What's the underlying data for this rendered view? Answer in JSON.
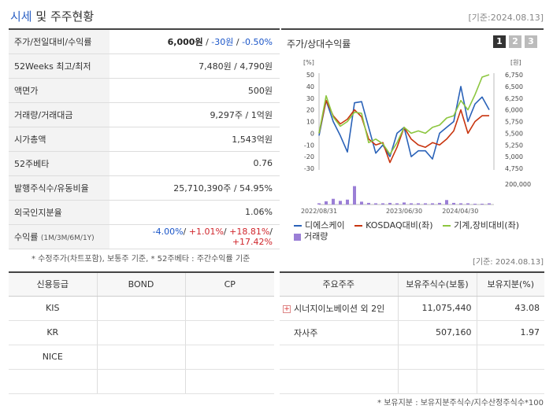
{
  "header": {
    "title_accent": "시세",
    "title_rest": " 및 주주현황",
    "base_date": "[기준:2024.08.13]"
  },
  "info": {
    "price_label": "주가/전일대비/수익률",
    "price": "6,000원",
    "change": "-30원",
    "change_pct": "-0.50%",
    "week52_label": "52Weeks 최고/최저",
    "week52_value": "7,480원 / 4,790원",
    "par_label": "액면가",
    "par_value": "500원",
    "volume_label": "거래량/거래대금",
    "volume_value": "9,297주 / 1억원",
    "mcap_label": "시가총액",
    "mcap_value": "1,543억원",
    "beta_label": "52주베타",
    "beta_value": "0.76",
    "shares_label": "발행주식수/유동비율",
    "shares_value": "25,710,390주 / 54.95%",
    "foreign_label": "외국인지분율",
    "foreign_value": "1.06%",
    "return_label": "수익률",
    "return_periods": "(1M/3M/6M/1Y)",
    "return_1m": "-4.00%",
    "return_3m": "+1.01%",
    "return_6m": "+18.81%",
    "return_1y": "+17.42%"
  },
  "chart_panel": {
    "title": "주가/상대수익률",
    "tabs": [
      "1",
      "2",
      "3"
    ]
  },
  "chart_data": {
    "type": "line",
    "left_unit": "[%]",
    "right_unit": "[원]",
    "left_ticks": [
      "50",
      "40",
      "30",
      "20",
      "10",
      "0",
      "-10",
      "-20",
      "-30"
    ],
    "right_ticks": [
      "6,750",
      "6,500",
      "6,250",
      "6,000",
      "5,750",
      "5,500",
      "5,250",
      "5,000",
      "4,750"
    ],
    "volume_tick": "200,000",
    "x_ticks": [
      "2022/08/31",
      "2023/06/30",
      "2024/04/30"
    ],
    "ylim": [
      -30,
      50
    ],
    "x": [
      0,
      1,
      2,
      3,
      4,
      5,
      6,
      7,
      8,
      9,
      10,
      11,
      12,
      13,
      14,
      15,
      16,
      17,
      18,
      19,
      20,
      21,
      22,
      23,
      24
    ],
    "series": [
      {
        "name": "디에스케이",
        "color": "#2a62b8",
        "values": [
          -2,
          28,
          10,
          -2,
          -16,
          26,
          27,
          5,
          -17,
          -10,
          -20,
          0,
          5,
          -20,
          -15,
          -15,
          -22,
          0,
          5,
          10,
          40,
          10,
          25,
          31,
          20
        ]
      },
      {
        "name": "KOSDAQ대비(좌)",
        "color": "#c8350f",
        "values": [
          0,
          28,
          15,
          8,
          12,
          20,
          14,
          -5,
          -10,
          -8,
          -25,
          -12,
          5,
          -5,
          -10,
          -12,
          -8,
          -10,
          -5,
          2,
          20,
          0,
          10,
          15,
          15
        ]
      },
      {
        "name": "기계,장비대비(좌)",
        "color": "#8cc63f",
        "values": [
          0,
          32,
          14,
          6,
          10,
          18,
          17,
          -8,
          -5,
          -9,
          -18,
          -8,
          5,
          0,
          2,
          0,
          5,
          7,
          13,
          15,
          28,
          20,
          33,
          48,
          50
        ]
      }
    ],
    "volume": {
      "name": "거래량",
      "color": "#9b7fd6",
      "values": [
        3,
        8,
        14,
        9,
        12,
        45,
        7,
        4,
        3,
        3,
        4,
        3,
        5,
        3,
        3,
        3,
        3,
        4,
        11,
        4,
        3,
        3,
        2,
        2,
        3
      ]
    }
  },
  "legend": {
    "s1": "디에스케이",
    "s2": "KOSDAQ대비(좌)",
    "s3": "기계,장비대비(좌)",
    "s4": "거래량"
  },
  "notes": {
    "note1": "* 수정주가(차트포함), 보통주 기준, * 52주베타 : 주간수익률 기준",
    "base_date2": "[기준: 2024.08.13]",
    "note2": "* 보유지분 : 보유지분주식수/지수산정주식수*100"
  },
  "credit": {
    "headers": [
      "신용등급",
      "BOND",
      "CP"
    ],
    "rows": [
      [
        "KIS",
        "",
        ""
      ],
      [
        "KR",
        "",
        ""
      ],
      [
        "NICE",
        "",
        ""
      ],
      [
        "",
        "",
        ""
      ]
    ]
  },
  "holders": {
    "headers": [
      "주요주주",
      "보유주식수(보통)",
      "보유지분(%)"
    ],
    "rows": [
      [
        "시너지이노베이션 외 2인",
        "11,075,440",
        "43.08"
      ],
      [
        "자사주",
        "507,160",
        "1.97"
      ],
      [
        "",
        "",
        ""
      ],
      [
        "",
        "",
        ""
      ]
    ]
  }
}
